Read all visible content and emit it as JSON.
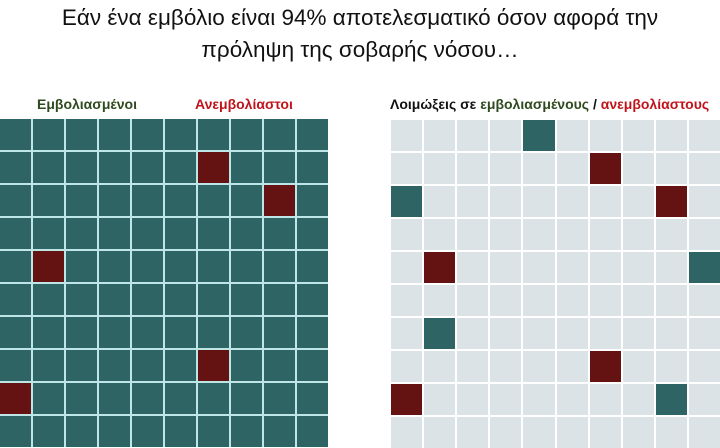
{
  "title": {
    "line1": "Εάν ένα εμβόλιο είναι 94% αποτελεσματικό όσον αφορά την",
    "line2": "πρόληψη της σοβαρής νόσου…"
  },
  "left_panel": {
    "label_vaccinated": "Εμβολιασμένοι",
    "label_unvaccinated": "Ανεμβολίαστοι",
    "rows": 10,
    "cols": 10,
    "default": "vaccinated",
    "highlighted": [
      {
        "row": 1,
        "col": 6,
        "type": "unvaccinated"
      },
      {
        "row": 2,
        "col": 8,
        "type": "unvaccinated"
      },
      {
        "row": 4,
        "col": 1,
        "type": "unvaccinated"
      },
      {
        "row": 7,
        "col": 6,
        "type": "unvaccinated"
      },
      {
        "row": 8,
        "col": 0,
        "type": "unvaccinated"
      }
    ]
  },
  "right_panel": {
    "label_prefix": "Λοιμώξεις σε ",
    "label_vaccinated": "εμβολιασμένους",
    "label_sep": " / ",
    "label_unvaccinated": "ανεμβολίαστους",
    "rows": 10,
    "cols": 10,
    "default": "empty",
    "highlighted": [
      {
        "row": 0,
        "col": 4,
        "type": "vaccinated"
      },
      {
        "row": 1,
        "col": 6,
        "type": "unvaccinated"
      },
      {
        "row": 2,
        "col": 0,
        "type": "vaccinated"
      },
      {
        "row": 2,
        "col": 8,
        "type": "unvaccinated"
      },
      {
        "row": 4,
        "col": 1,
        "type": "unvaccinated"
      },
      {
        "row": 4,
        "col": 9,
        "type": "vaccinated"
      },
      {
        "row": 6,
        "col": 1,
        "type": "vaccinated"
      },
      {
        "row": 7,
        "col": 6,
        "type": "unvaccinated"
      },
      {
        "row": 8,
        "col": 0,
        "type": "unvaccinated"
      },
      {
        "row": 8,
        "col": 8,
        "type": "vaccinated"
      }
    ]
  },
  "colors": {
    "vaccinated": "#2e6464",
    "unvaccinated": "#641212",
    "empty": "#dbe3e6",
    "label_green": "#2e4a1e",
    "label_red": "#c0141c"
  }
}
